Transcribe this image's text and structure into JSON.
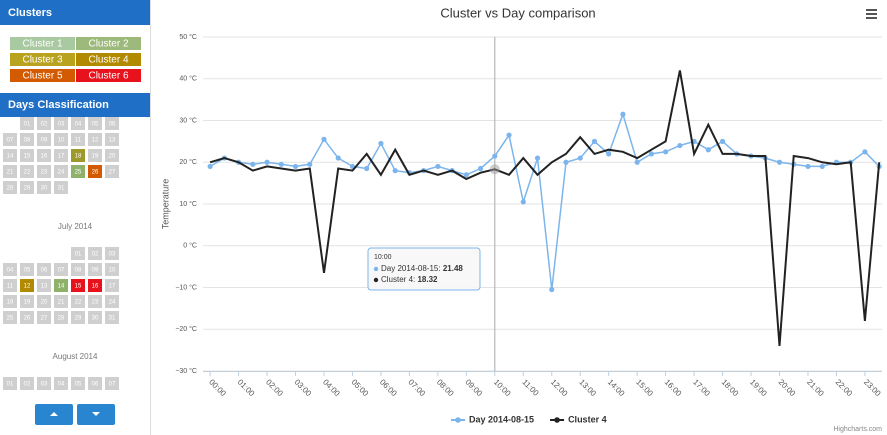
{
  "sidebar": {
    "clusters_title": "Clusters",
    "clusters": [
      {
        "label": "Cluster 1",
        "color": "#a9c9a1"
      },
      {
        "label": "Cluster 2",
        "color": "#9db97b"
      },
      {
        "label": "Cluster 3",
        "color": "#b9a21e"
      },
      {
        "label": "Cluster 4",
        "color": "#b28a00"
      },
      {
        "label": "Cluster 5",
        "color": "#d35a00"
      },
      {
        "label": "Cluster 6",
        "color": "#e8121c"
      }
    ],
    "days_title": "Days Classification",
    "months": [
      {
        "days": [
          null,
          "01",
          "02",
          "03",
          "04",
          "05",
          "06",
          "07",
          "08",
          "09",
          "10",
          "11",
          "12",
          "13",
          "14",
          "15",
          "16",
          "17",
          {
            "label": "18",
            "color": "#9c9a2a"
          },
          "19",
          "20",
          "21",
          "22",
          "23",
          "24",
          {
            "label": "25",
            "color": "#8fb26a"
          },
          {
            "label": "26",
            "color": "#d35a00"
          },
          "27",
          "28",
          "29",
          "30",
          "31"
        ]
      },
      {
        "label": "July 2014",
        "days": [
          null,
          null,
          null,
          null,
          "01",
          "02",
          "03",
          "04",
          "05",
          "06",
          "07",
          "08",
          "09",
          "10",
          "11",
          {
            "label": "12",
            "color": "#b28a00"
          },
          "13",
          {
            "label": "14",
            "color": "#8fb26a"
          },
          {
            "label": "15",
            "color": "#e8121c"
          },
          {
            "label": "16",
            "color": "#e8121c"
          },
          "17",
          "18",
          "19",
          "20",
          "21",
          "22",
          "23",
          "24",
          "25",
          "26",
          "27",
          "28",
          "29",
          "30",
          "31"
        ]
      },
      {
        "label": "August 2014",
        "days": [
          "01",
          "02",
          "03",
          "04",
          "05",
          "06",
          "07"
        ]
      }
    ]
  },
  "chart_data": {
    "type": "line",
    "title": "Cluster vs Day comparison",
    "y_label": "Temperature",
    "credit": "Highcharts.com",
    "x": [
      0,
      0.5,
      1,
      1.5,
      2,
      2.5,
      3,
      3.5,
      4,
      4.5,
      5,
      5.5,
      6,
      6.5,
      7,
      7.5,
      8,
      8.5,
      9,
      9.5,
      10,
      10.5,
      11,
      11.5,
      12,
      12.5,
      13,
      13.5,
      14,
      14.5,
      15,
      15.5,
      16,
      16.5,
      17,
      17.5,
      18,
      18.5,
      19,
      19.5,
      20,
      20.5,
      21,
      21.5,
      22,
      22.5,
      23,
      23.5
    ],
    "series": [
      {
        "name": "Day 2014-08-15",
        "color": "#7cb5ec",
        "markers": true,
        "values": [
          19,
          21,
          20,
          19.5,
          20,
          19.5,
          19,
          19.5,
          25.5,
          21,
          19,
          18.5,
          24.5,
          18,
          17.5,
          18,
          19,
          18,
          17,
          18.5,
          21.48,
          26.5,
          10.5,
          21,
          -10.5,
          20,
          21,
          25,
          22,
          31.5,
          20,
          22,
          22.5,
          24,
          25,
          23,
          25,
          22,
          21.5,
          21,
          20,
          19.5,
          19,
          19,
          20,
          20,
          22.5,
          19
        ]
      },
      {
        "name": "Cluster 4",
        "color": "#222222",
        "markers": false,
        "values": [
          20,
          21,
          20,
          18,
          19,
          18.5,
          18,
          18.5,
          -6.5,
          18.5,
          18,
          22,
          17,
          23,
          17,
          18,
          17,
          18,
          16,
          17.5,
          18.32,
          17,
          21,
          17,
          20,
          22,
          26,
          22,
          23,
          22.5,
          21,
          23,
          25,
          42,
          22,
          29,
          22,
          22,
          21.5,
          21.5,
          -24,
          21.5,
          21,
          20,
          19.5,
          20,
          -18,
          20
        ]
      }
    ],
    "xlim": [
      -0.25,
      23.6
    ],
    "xticks": [
      {
        "value": 0,
        "label": "00:00"
      },
      {
        "value": 1,
        "label": "01:00"
      },
      {
        "value": 2,
        "label": "02:00"
      },
      {
        "value": 3,
        "label": "03:00"
      },
      {
        "value": 4,
        "label": "04:00"
      },
      {
        "value": 5,
        "label": "05:00"
      },
      {
        "value": 6,
        "label": "06:00"
      },
      {
        "value": 7,
        "label": "07:00"
      },
      {
        "value": 8,
        "label": "08:00"
      },
      {
        "value": 9,
        "label": "09:00"
      },
      {
        "value": 10,
        "label": "10:00"
      },
      {
        "value": 11,
        "label": "11:00"
      },
      {
        "value": 12,
        "label": "12:00"
      },
      {
        "value": 13,
        "label": "13:00"
      },
      {
        "value": 14,
        "label": "14:00"
      },
      {
        "value": 15,
        "label": "15:00"
      },
      {
        "value": 16,
        "label": "16:00"
      },
      {
        "value": 17,
        "label": "17:00"
      },
      {
        "value": 18,
        "label": "18:00"
      },
      {
        "value": 19,
        "label": "19:00"
      },
      {
        "value": 20,
        "label": "20:00"
      },
      {
        "value": 21,
        "label": "21:00"
      },
      {
        "value": 22,
        "label": "22:00"
      },
      {
        "value": 23,
        "label": "23:00"
      }
    ],
    "ylim": [
      -30,
      50
    ],
    "yticks": [
      {
        "value": -30,
        "label": "−30 °C"
      },
      {
        "value": -20,
        "label": "−20 °C"
      },
      {
        "value": -10,
        "label": "−10 °C"
      },
      {
        "value": 0,
        "label": "0 °C"
      },
      {
        "value": 10,
        "label": "10 °C"
      },
      {
        "value": 20,
        "label": "20 °C"
      },
      {
        "value": 30,
        "label": "30 °C"
      },
      {
        "value": 40,
        "label": "40 °C"
      },
      {
        "value": 50,
        "label": "50 °C"
      }
    ],
    "grid": true,
    "legend": "bottom"
  }
}
